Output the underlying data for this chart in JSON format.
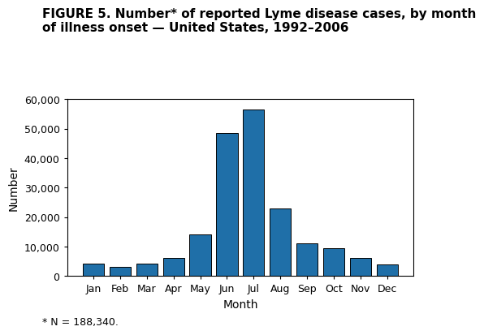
{
  "title_line1": "FIGURE 5. Number* of reported Lyme disease cases, by month",
  "title_line2": "of illness onset — United States, 1992–2006",
  "xlabel": "Month",
  "ylabel": "Number",
  "footnote": "* N = 188,340.",
  "months": [
    "Jan",
    "Feb",
    "Mar",
    "Apr",
    "May",
    "Jun",
    "Jul",
    "Aug",
    "Sep",
    "Oct",
    "Nov",
    "Dec"
  ],
  "values": [
    4200,
    3200,
    4200,
    6200,
    14000,
    48500,
    56500,
    23000,
    11000,
    9500,
    6200,
    3800
  ],
  "bar_color": "#1f6fa8",
  "bar_edge_color": "#000000",
  "ylim": [
    0,
    60000
  ],
  "yticks": [
    0,
    10000,
    20000,
    30000,
    40000,
    50000,
    60000
  ],
  "background_color": "#ffffff",
  "title_fontsize": 11,
  "axis_label_fontsize": 10,
  "tick_fontsize": 9,
  "footnote_fontsize": 9
}
